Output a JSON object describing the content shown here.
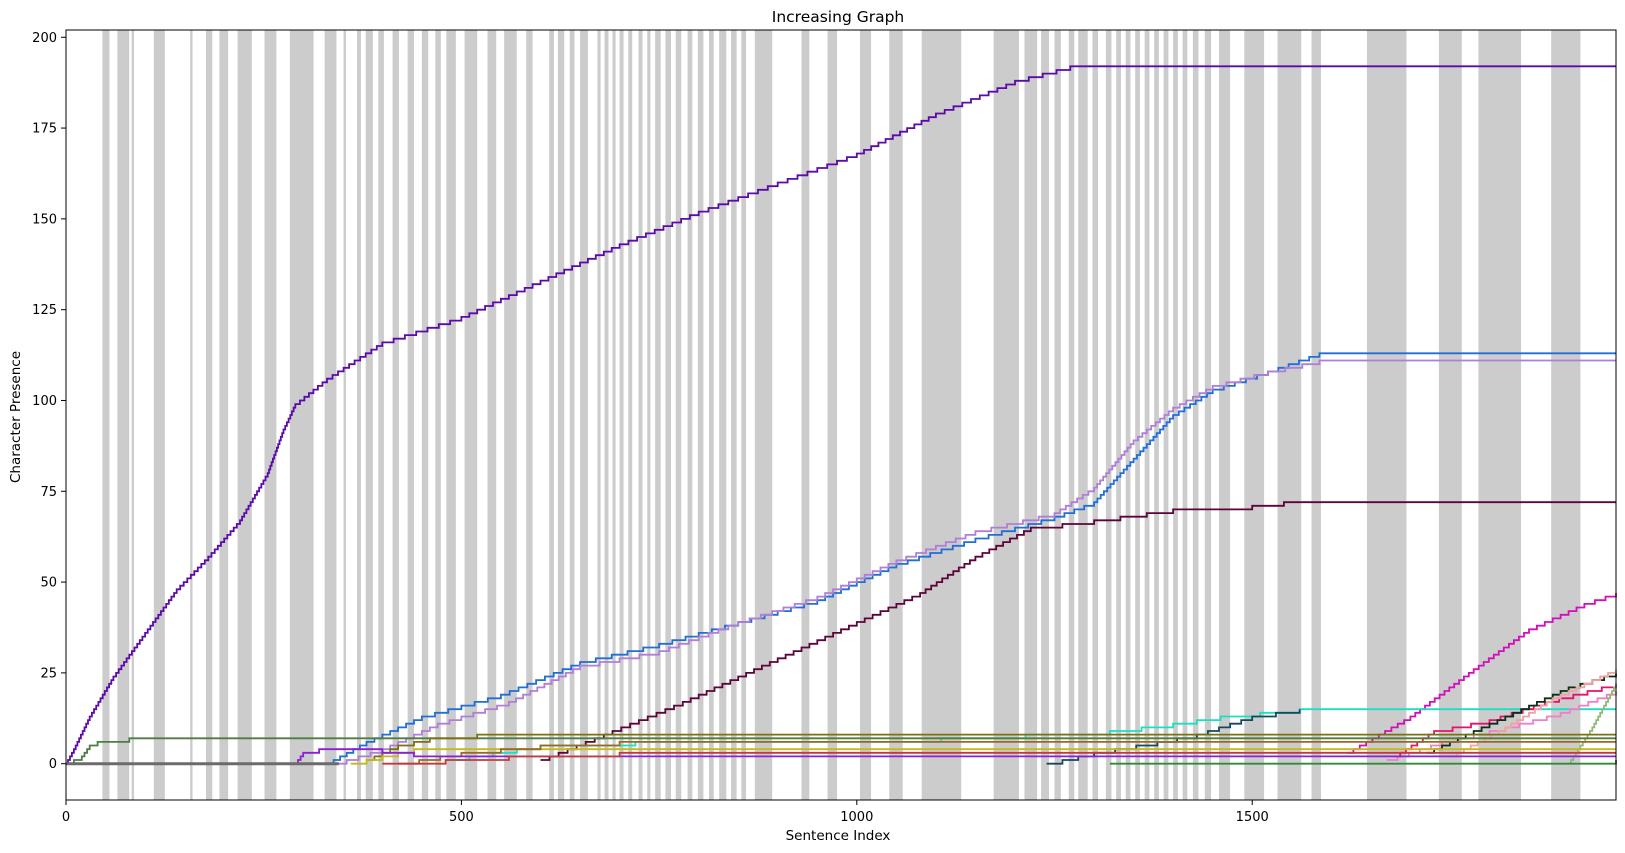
{
  "chart_data": {
    "type": "line",
    "title": "Increasing Graph",
    "xlabel": "Sentence Index",
    "ylabel": "Character Presence",
    "xlim": [
      0,
      1960
    ],
    "ylim": [
      -10,
      202
    ],
    "x_ticks": [
      0,
      500,
      1000,
      1500
    ],
    "y_ticks": [
      0,
      25,
      50,
      75,
      100,
      125,
      150,
      175,
      200
    ],
    "grid": false,
    "legend": "none",
    "background_band_color": "#cccccc",
    "shaded_bands": [
      [
        46,
        55
      ],
      [
        65,
        80
      ],
      [
        83,
        86
      ],
      [
        111,
        125
      ],
      [
        157,
        160
      ],
      [
        177,
        185
      ],
      [
        194,
        205
      ],
      [
        217,
        235
      ],
      [
        251,
        266
      ],
      [
        283,
        313
      ],
      [
        327,
        342
      ],
      [
        351,
        354
      ],
      [
        368,
        373
      ],
      [
        379,
        388
      ],
      [
        395,
        402
      ],
      [
        413,
        421
      ],
      [
        432,
        440
      ],
      [
        450,
        458
      ],
      [
        467,
        474
      ],
      [
        481,
        493
      ],
      [
        504,
        520
      ],
      [
        533,
        544
      ],
      [
        554,
        570
      ],
      [
        582,
        590
      ],
      [
        611,
        617
      ],
      [
        622,
        630
      ],
      [
        637,
        643
      ],
      [
        650,
        660
      ],
      [
        672,
        676
      ],
      [
        681,
        686
      ],
      [
        691,
        695
      ],
      [
        700,
        705
      ],
      [
        711,
        716
      ],
      [
        724,
        729
      ],
      [
        735,
        739
      ],
      [
        745,
        752
      ],
      [
        758,
        765
      ],
      [
        771,
        778
      ],
      [
        786,
        792
      ],
      [
        799,
        806
      ],
      [
        813,
        819
      ],
      [
        826,
        835
      ],
      [
        841,
        848
      ],
      [
        854,
        860
      ],
      [
        871,
        893
      ],
      [
        930,
        940
      ],
      [
        963,
        975
      ],
      [
        1004,
        1018
      ],
      [
        1041,
        1058
      ],
      [
        1082,
        1132
      ],
      [
        1173,
        1205
      ],
      [
        1212,
        1228
      ],
      [
        1233,
        1243
      ],
      [
        1250,
        1258
      ],
      [
        1268,
        1275
      ],
      [
        1280,
        1292
      ],
      [
        1298,
        1305
      ],
      [
        1315,
        1322
      ],
      [
        1328,
        1334
      ],
      [
        1340,
        1346
      ],
      [
        1352,
        1358
      ],
      [
        1364,
        1370
      ],
      [
        1376,
        1382
      ],
      [
        1388,
        1394
      ],
      [
        1400,
        1406
      ],
      [
        1412,
        1418
      ],
      [
        1425,
        1432
      ],
      [
        1440,
        1448
      ],
      [
        1458,
        1472
      ],
      [
        1490,
        1515
      ],
      [
        1532,
        1562
      ],
      [
        1575,
        1587
      ],
      [
        1645,
        1695
      ],
      [
        1736,
        1765
      ],
      [
        1786,
        1840
      ],
      [
        1878,
        1915
      ]
    ],
    "series": [
      {
        "color": "#5b0aa8",
        "points": [
          [
            0,
            0
          ],
          [
            10,
            4
          ],
          [
            30,
            13
          ],
          [
            60,
            24
          ],
          [
            100,
            36
          ],
          [
            140,
            48
          ],
          [
            180,
            57
          ],
          [
            220,
            67
          ],
          [
            255,
            80
          ],
          [
            275,
            92
          ],
          [
            290,
            99
          ],
          [
            330,
            106
          ],
          [
            400,
            116
          ],
          [
            500,
            123
          ],
          [
            600,
            133
          ],
          [
            700,
            143
          ],
          [
            800,
            152
          ],
          [
            900,
            160
          ],
          [
            1000,
            168
          ],
          [
            1100,
            179
          ],
          [
            1200,
            188
          ],
          [
            1270,
            192
          ],
          [
            1960,
            192
          ]
        ]
      },
      {
        "color": "#1f6fd6",
        "points": [
          [
            330,
            0
          ],
          [
            380,
            6
          ],
          [
            450,
            13
          ],
          [
            550,
            19
          ],
          [
            650,
            28
          ],
          [
            750,
            33
          ],
          [
            850,
            39
          ],
          [
            950,
            45
          ],
          [
            1050,
            55
          ],
          [
            1150,
            62
          ],
          [
            1250,
            68
          ],
          [
            1300,
            72
          ],
          [
            1350,
            84
          ],
          [
            1400,
            96
          ],
          [
            1450,
            103
          ],
          [
            1520,
            108
          ],
          [
            1585,
            113
          ],
          [
            1960,
            113
          ]
        ]
      },
      {
        "color": "#b07ed6",
        "points": [
          [
            340,
            0
          ],
          [
            400,
            4
          ],
          [
            470,
            11
          ],
          [
            560,
            17
          ],
          [
            650,
            27
          ],
          [
            750,
            31
          ],
          [
            850,
            39
          ],
          [
            950,
            46
          ],
          [
            1050,
            56
          ],
          [
            1150,
            64
          ],
          [
            1250,
            69
          ],
          [
            1300,
            76
          ],
          [
            1350,
            89
          ],
          [
            1400,
            98
          ],
          [
            1450,
            104
          ],
          [
            1520,
            108
          ],
          [
            1585,
            111
          ],
          [
            1960,
            111
          ]
        ]
      },
      {
        "color": "#5c0339",
        "points": [
          [
            600,
            1
          ],
          [
            680,
            8
          ],
          [
            780,
            17
          ],
          [
            880,
            27
          ],
          [
            980,
            37
          ],
          [
            1080,
            47
          ],
          [
            1150,
            57
          ],
          [
            1220,
            65
          ],
          [
            1300,
            67
          ],
          [
            1400,
            70
          ],
          [
            1500,
            71
          ],
          [
            1540,
            72
          ],
          [
            1960,
            72
          ]
        ]
      },
      {
        "color": "#d10fb8",
        "points": [
          [
            1620,
            3
          ],
          [
            1700,
            13
          ],
          [
            1780,
            26
          ],
          [
            1850,
            37
          ],
          [
            1920,
            44
          ],
          [
            1960,
            47
          ]
        ]
      },
      {
        "color": "#19e0c3",
        "points": [
          [
            480,
            1
          ],
          [
            600,
            5
          ],
          [
            720,
            6
          ],
          [
            1000,
            6
          ],
          [
            1320,
            9
          ],
          [
            1400,
            11
          ],
          [
            1460,
            13
          ],
          [
            1560,
            15
          ],
          [
            1960,
            15
          ]
        ]
      },
      {
        "color": "#e8106e",
        "points": [
          [
            1680,
            2
          ],
          [
            1730,
            9
          ],
          [
            1800,
            12
          ],
          [
            1870,
            17
          ],
          [
            1960,
            22
          ]
        ]
      },
      {
        "color": "#f07fc8",
        "points": [
          [
            1670,
            1
          ],
          [
            1740,
            6
          ],
          [
            1820,
            10
          ],
          [
            1890,
            14
          ],
          [
            1960,
            20
          ]
        ]
      },
      {
        "color": "#0a2e16",
        "points": [
          [
            1720,
            3
          ],
          [
            1780,
            9
          ],
          [
            1840,
            15
          ],
          [
            1900,
            21
          ],
          [
            1960,
            25
          ]
        ]
      },
      {
        "color": "#f2a0a0",
        "points": [
          [
            1750,
            2
          ],
          [
            1820,
            10
          ],
          [
            1880,
            18
          ],
          [
            1960,
            26
          ]
        ]
      },
      {
        "color": "#8fb87a",
        "points": [
          [
            1900,
            0
          ],
          [
            1930,
            10
          ],
          [
            1960,
            22
          ]
        ]
      },
      {
        "color": "#124a5c",
        "points": [
          [
            1240,
            0
          ],
          [
            1300,
            3
          ],
          [
            1380,
            6
          ],
          [
            1430,
            8
          ],
          [
            1500,
            13
          ],
          [
            1560,
            15
          ]
        ]
      },
      {
        "color": "#4e7d44",
        "points": [
          [
            0,
            0
          ],
          [
            20,
            2
          ],
          [
            30,
            5
          ],
          [
            40,
            6
          ],
          [
            80,
            7
          ],
          [
            1960,
            7
          ]
        ]
      },
      {
        "color": "#7a7110",
        "points": [
          [
            380,
            1
          ],
          [
            420,
            5
          ],
          [
            460,
            7
          ],
          [
            520,
            8
          ],
          [
            1960,
            8
          ]
        ]
      },
      {
        "color": "#c5b81a",
        "points": [
          [
            360,
            0
          ],
          [
            400,
            2
          ],
          [
            440,
            4
          ],
          [
            500,
            4
          ],
          [
            1960,
            4
          ]
        ]
      },
      {
        "color": "#9c6a1f",
        "points": [
          [
            420,
            0
          ],
          [
            500,
            3
          ],
          [
            600,
            5
          ],
          [
            700,
            6
          ],
          [
            1960,
            6
          ]
        ]
      },
      {
        "color": "#8c1fd6",
        "points": [
          [
            290,
            0
          ],
          [
            300,
            3
          ],
          [
            320,
            4
          ],
          [
            360,
            4
          ],
          [
            400,
            3
          ],
          [
            440,
            2
          ],
          [
            520,
            2
          ],
          [
            1960,
            2
          ]
        ]
      },
      {
        "color": "#c23a3a",
        "points": [
          [
            400,
            0
          ],
          [
            480,
            1
          ],
          [
            560,
            2
          ],
          [
            700,
            3
          ],
          [
            1960,
            3
          ]
        ]
      },
      {
        "color": "#2e8b3a",
        "points": [
          [
            1320,
            0
          ],
          [
            1960,
            1
          ]
        ]
      },
      {
        "color": "#6b6b6b",
        "points": [
          [
            0,
            0
          ],
          [
            345,
            0
          ]
        ]
      }
    ]
  }
}
